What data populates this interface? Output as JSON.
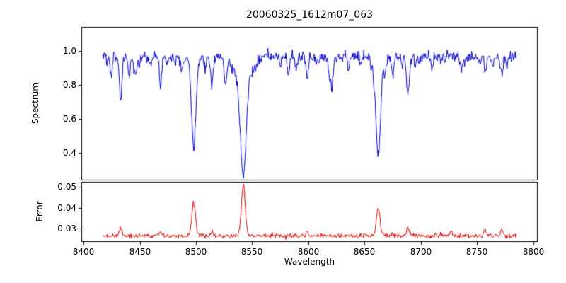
{
  "chart_data": {
    "type": "line",
    "title": "20060325_1612m07_063",
    "xlabel": "Wavelength",
    "grid": false,
    "legend": "none",
    "xlim": [
      8398,
      8804
    ],
    "x_data_range": [
      8417,
      8785
    ],
    "n_points": 760,
    "seed": 7,
    "xticks": {
      "values": [
        8400,
        8450,
        8500,
        8550,
        8600,
        8650,
        8700,
        8750,
        8800
      ],
      "labels": [
        "8400",
        "8450",
        "8500",
        "8550",
        "8600",
        "8650",
        "8700",
        "8750",
        "8800"
      ]
    },
    "panels": [
      {
        "name": "spectrum",
        "ylabel": "Spectrum",
        "color": "#0000cc",
        "ylim": [
          0.24,
          1.14
        ],
        "yticks": {
          "values": [
            0.4,
            0.6,
            0.8,
            1.0
          ],
          "labels": [
            "0.4",
            "0.6",
            "0.8",
            "1.0"
          ]
        },
        "continuum": 0.965,
        "noise_sigma": 0.016,
        "absorption_lines": [
          {
            "center": 8424.5,
            "depth": 0.1,
            "sigma": 0.9
          },
          {
            "center": 8433.0,
            "depth": 0.26,
            "sigma": 1.1
          },
          {
            "center": 8440.5,
            "depth": 0.12,
            "sigma": 0.9
          },
          {
            "center": 8446.5,
            "depth": 0.1,
            "sigma": 0.9
          },
          {
            "center": 8468.4,
            "depth": 0.14,
            "sigma": 1.1
          },
          {
            "center": 8498.0,
            "depth": 0.55,
            "sigma": 1.9
          },
          {
            "center": 8514.1,
            "depth": 0.16,
            "sigma": 1.0
          },
          {
            "center": 8526.7,
            "depth": 0.1,
            "sigma": 0.9
          },
          {
            "center": 8542.1,
            "depth": 0.55,
            "sigma": 2.4
          },
          {
            "center": 8542.1,
            "depth": 0.15,
            "sigma": 7.0
          },
          {
            "center": 8582.3,
            "depth": 0.1,
            "sigma": 0.9
          },
          {
            "center": 8598.8,
            "depth": 0.13,
            "sigma": 1.0
          },
          {
            "center": 8620.5,
            "depth": 0.09,
            "sigma": 0.9
          },
          {
            "center": 8662.1,
            "depth": 0.58,
            "sigma": 2.1
          },
          {
            "center": 8674.8,
            "depth": 0.09,
            "sigma": 0.9
          },
          {
            "center": 8688.6,
            "depth": 0.19,
            "sigma": 1.3
          },
          {
            "center": 8710.2,
            "depth": 0.08,
            "sigma": 0.9
          },
          {
            "center": 8736.0,
            "depth": 0.07,
            "sigma": 0.9
          },
          {
            "center": 8757.2,
            "depth": 0.09,
            "sigma": 0.9
          },
          {
            "center": 8772.0,
            "depth": 0.08,
            "sigma": 0.9
          }
        ],
        "micro_lines": {
          "count": 48,
          "depth_min": 0.015,
          "depth_max": 0.07,
          "sigma": 0.7
        }
      },
      {
        "name": "error",
        "ylabel": "Error",
        "color": "#dd0000",
        "ylim": [
          0.0235,
          0.0525
        ],
        "yticks": {
          "values": [
            0.03,
            0.04,
            0.05
          ],
          "labels": [
            "0.03",
            "0.04",
            "0.05"
          ]
        },
        "baseline": 0.0265,
        "noise_sigma": 0.00055,
        "peaks": [
          {
            "center": 8433.0,
            "amp": 0.0035,
            "sigma": 1.2
          },
          {
            "center": 8468.4,
            "amp": 0.0022,
            "sigma": 1.1
          },
          {
            "center": 8498.0,
            "amp": 0.0165,
            "sigma": 1.6
          },
          {
            "center": 8514.1,
            "amp": 0.0025,
            "sigma": 1.0
          },
          {
            "center": 8542.1,
            "amp": 0.0245,
            "sigma": 1.7
          },
          {
            "center": 8598.8,
            "amp": 0.0022,
            "sigma": 1.0
          },
          {
            "center": 8662.1,
            "amp": 0.0135,
            "sigma": 1.6
          },
          {
            "center": 8688.6,
            "amp": 0.0038,
            "sigma": 1.2
          },
          {
            "center": 8727.0,
            "amp": 0.0018,
            "sigma": 1.0
          },
          {
            "center": 8757.2,
            "amp": 0.0028,
            "sigma": 1.0
          },
          {
            "center": 8772.0,
            "amp": 0.003,
            "sigma": 1.0
          }
        ]
      }
    ]
  }
}
